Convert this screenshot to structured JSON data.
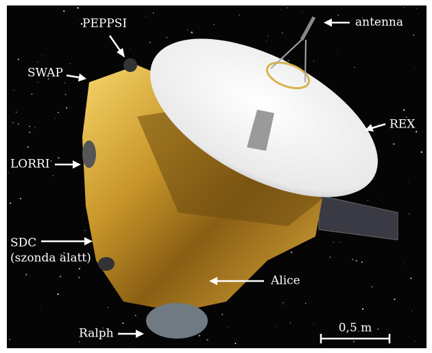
{
  "labels": {
    "peppsi": "PEPPSI",
    "antenna": "antenna",
    "swap": "SWAP",
    "rex": "REX",
    "lorri": "LORRI",
    "sdc": "SDC",
    "sdc_note": "(szonda alatt)",
    "alice": "Alice",
    "ralph": "Ralph"
  },
  "scale_bar": {
    "label": "0,5 m"
  }
}
